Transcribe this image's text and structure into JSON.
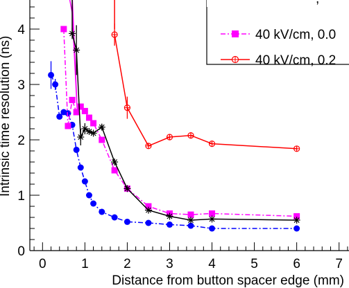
{
  "chart_data": {
    "type": "line",
    "title": "",
    "xlabel": "Distance from button spacer edge (mm)",
    "ylabel": "Intrinsic time resolution (ns)",
    "xlim": [
      -0.3,
      7.3
    ],
    "ylim": [
      0,
      4.6
    ],
    "x_ticks": [
      "0",
      "1",
      "2",
      "3",
      "4",
      "5",
      "6",
      "7"
    ],
    "x_tick_values": [
      0,
      1,
      2,
      3,
      4,
      5,
      6,
      7
    ],
    "y_ticks": [
      "0",
      "1",
      "2",
      "3",
      "4"
    ],
    "y_tick_values": [
      0,
      1,
      2,
      3,
      4
    ],
    "grid": false,
    "legend_position": "top-right",
    "series": [
      {
        "name": "",
        "color": "#0000ff",
        "marker": "circle",
        "line_style": "dash-dot",
        "x": [
          0.2,
          0.3,
          0.4,
          0.5,
          0.6,
          0.7,
          0.8,
          0.9,
          1.0,
          1.1,
          1.2,
          1.4,
          1.7,
          2.0,
          2.5,
          3.0,
          3.5,
          4.0,
          6.0
        ],
        "y": [
          3.17,
          3.0,
          2.42,
          2.5,
          2.48,
          2.27,
          1.82,
          1.5,
          1.25,
          1.0,
          0.85,
          0.7,
          0.6,
          0.52,
          0.5,
          0.47,
          0.45,
          0.4,
          0.4
        ],
        "y_err": [
          0.25,
          0.1,
          0,
          0,
          0,
          0,
          0,
          0,
          0,
          0,
          0,
          0,
          0,
          0,
          0,
          0,
          0,
          0,
          0
        ]
      },
      {
        "name": "40 kV/cm, 0.0",
        "color": "#ff00ff",
        "marker": "square",
        "line_style": "dash-dot",
        "x": [
          0.5,
          0.6,
          0.7,
          0.8,
          0.9,
          1.0,
          1.1,
          1.2,
          1.4,
          1.7,
          2.0,
          2.5,
          3.0,
          3.5,
          4.0,
          6.0
        ],
        "y": [
          4.0,
          2.25,
          2.72,
          2.5,
          2.6,
          2.52,
          2.4,
          2.3,
          2.0,
          1.45,
          1.12,
          0.8,
          0.67,
          0.65,
          0.67,
          0.62
        ],
        "y_err": [
          0,
          0,
          0,
          0,
          0,
          0,
          0,
          0,
          0,
          0,
          0,
          0,
          0,
          0,
          0,
          0
        ]
      },
      {
        "name": "",
        "color": "#000000",
        "marker": "star",
        "line_style": "solid",
        "x": [
          0.7,
          0.8,
          0.9,
          1.0,
          1.1,
          1.2,
          1.4,
          1.7,
          2.0,
          2.5,
          3.0,
          3.5,
          4.0,
          6.0
        ],
        "y": [
          3.92,
          3.62,
          2.05,
          2.2,
          2.15,
          2.12,
          2.23,
          1.6,
          1.12,
          0.73,
          0.62,
          0.55,
          0.57,
          0.55
        ],
        "y_err": [
          0.1,
          0.45,
          0.15,
          0.1,
          0,
          0,
          0.05,
          0,
          0,
          0,
          0,
          0,
          0,
          0
        ]
      },
      {
        "name": "40 kV/cm, 0.2",
        "color": "#ff0000",
        "marker": "open-circle-cross",
        "line_style": "solid",
        "x": [
          1.7,
          2.0,
          2.5,
          3.0,
          3.5,
          4.0,
          6.0
        ],
        "y": [
          3.9,
          2.58,
          1.89,
          2.05,
          2.08,
          1.93,
          1.84
        ],
        "y_err": [
          0.2,
          0.2,
          0.05,
          0.05,
          0.05,
          0.03,
          0.04
        ]
      }
    ],
    "offscreen_lines": [
      {
        "color": "#ff00ff",
        "x": [
          0.6,
          0.7,
          0.82,
          0.7
        ],
        "y": [
          4.7,
          4.3,
          2.5,
          4.6
        ]
      },
      {
        "color": "#000000",
        "x": [
          0.7,
          0.7
        ],
        "y": [
          4.6,
          3.9
        ]
      },
      {
        "color": "#ff0000",
        "x": [
          1.7,
          1.7
        ],
        "y": [
          4.7,
          4.0
        ]
      }
    ]
  }
}
